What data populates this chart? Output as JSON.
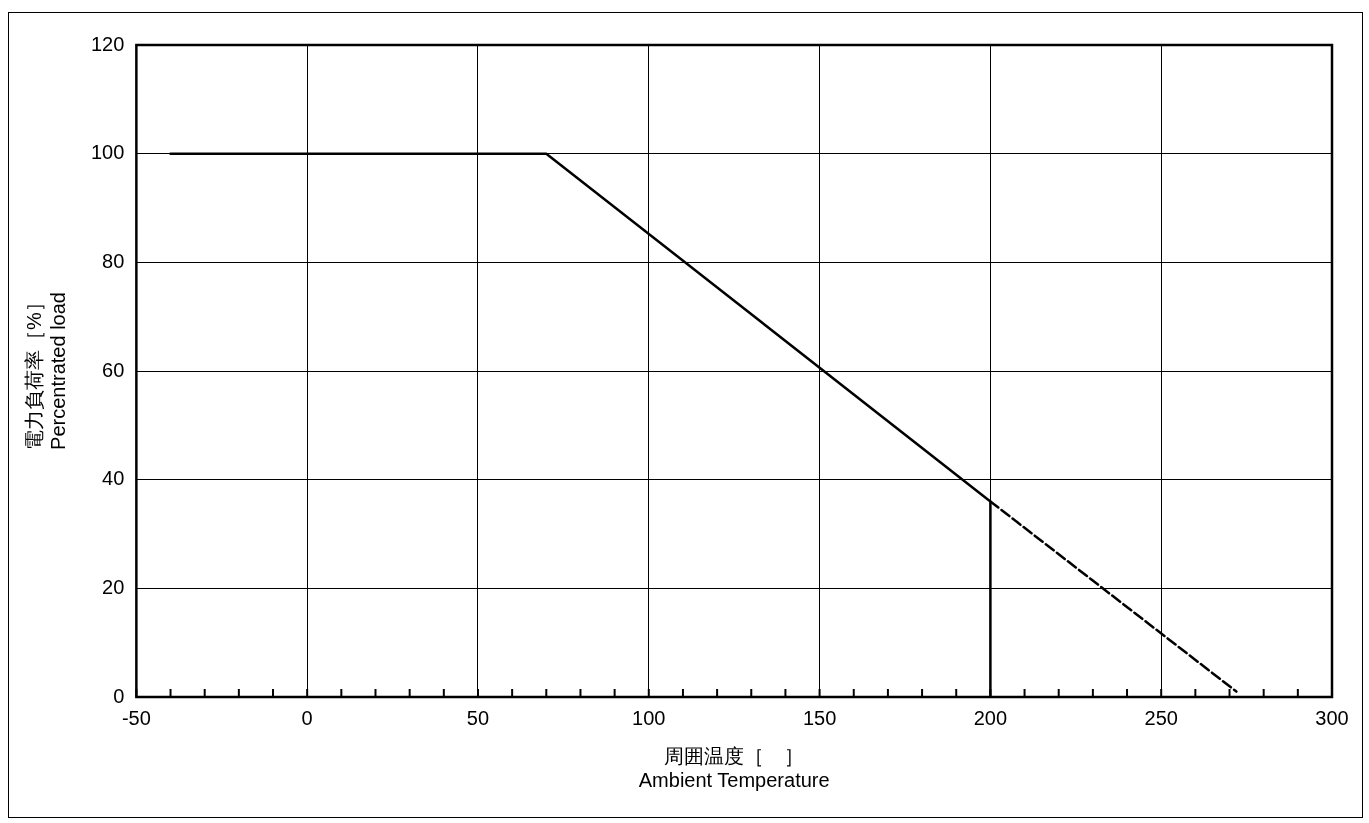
{
  "chart_data": {
    "type": "line",
    "xlabel": "周囲温度［　］\nAmbient Temperature",
    "ylabel": "電力負荷率［%］\nPercentrated load",
    "series": [
      {
        "color": "#000000",
        "line_style": "solid",
        "x": [
          -40,
          70,
          200,
          200
        ],
        "values": [
          100,
          100,
          36,
          0
        ]
      },
      {
        "color": "#000000",
        "line_style": "dashed",
        "x": [
          200,
          272
        ],
        "values": [
          36,
          1
        ]
      }
    ],
    "xlim": [
      -50,
      300
    ],
    "xticks": [
      -50,
      {
        "value": -40,
        "label": null
      },
      {
        "value": -30,
        "label": null
      },
      {
        "value": -20,
        "label": null
      },
      {
        "value": -10,
        "label": null
      },
      0,
      {
        "value": 10,
        "label": null
      },
      {
        "value": 20,
        "label": null
      },
      {
        "value": 30,
        "label": null
      },
      {
        "value": 40,
        "label": null
      },
      50,
      {
        "value": 60,
        "label": null
      },
      {
        "value": 70,
        "label": null
      },
      {
        "value": 80,
        "label": null
      },
      {
        "value": 90,
        "label": null
      },
      100,
      {
        "value": 110,
        "label": null
      },
      {
        "value": 120,
        "label": null
      },
      {
        "value": 130,
        "label": null
      },
      {
        "value": 140,
        "label": null
      },
      150,
      {
        "value": 160,
        "label": null
      },
      {
        "value": 170,
        "label": null
      },
      {
        "value": 180,
        "label": null
      },
      {
        "value": 190,
        "label": null
      },
      200,
      {
        "value": 210,
        "label": null
      },
      {
        "value": 220,
        "label": null
      },
      {
        "value": 230,
        "label": null
      },
      {
        "value": 240,
        "label": null
      },
      250,
      {
        "value": 260,
        "label": null
      },
      {
        "value": 270,
        "label": null
      },
      {
        "value": 280,
        "label": null
      },
      {
        "value": 290,
        "label": null
      },
      300
    ],
    "ylim": [
      0,
      120
    ],
    "yticks": [
      0,
      20,
      40,
      60,
      80,
      100,
      120
    ],
    "grid": true,
    "marker": "none",
    "legend": false
  }
}
